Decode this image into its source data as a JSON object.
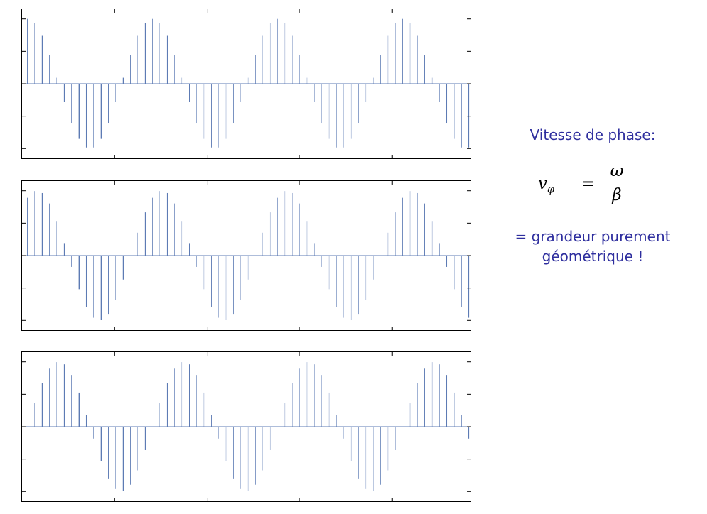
{
  "colors": {
    "stem": "#5d7bb4",
    "frame": "#000000",
    "note": "#2e2e9e"
  },
  "notes": {
    "title": "Vitesse de phase:",
    "formula": {
      "lhs": "v",
      "lhs_sub": "φ",
      "equals": "=",
      "numerator": "ω",
      "denominator": "β"
    },
    "line1": "= grandeur purement",
    "line2": "géométrique !"
  },
  "chart_data": [
    {
      "type": "stem",
      "title": "",
      "xlabel": "",
      "ylabel": "",
      "xlim": [
        0,
        61
      ],
      "ylim": [
        -1.15,
        1.15
      ],
      "cycles_shown": 3.6,
      "samples_per_cycle": 17,
      "phase_deg": 90,
      "n_samples": 61,
      "x_tick_count": 4,
      "y_tick_count": 5,
      "grid": false,
      "legend": "none"
    },
    {
      "type": "stem",
      "title": "",
      "xlabel": "",
      "ylabel": "",
      "xlim": [
        0,
        61
      ],
      "ylim": [
        -1.15,
        1.15
      ],
      "cycles_shown": 3.6,
      "samples_per_cycle": 17,
      "phase_deg": 63,
      "n_samples": 61,
      "x_tick_count": 4,
      "y_tick_count": 5,
      "grid": false,
      "legend": "none"
    },
    {
      "type": "stem",
      "title": "",
      "xlabel": "",
      "ylabel": "",
      "xlim": [
        0,
        61
      ],
      "ylim": [
        -1.15,
        1.15
      ],
      "cycles_shown": 3.6,
      "samples_per_cycle": 17,
      "phase_deg": 0,
      "n_samples": 61,
      "x_tick_count": 4,
      "y_tick_count": 5,
      "grid": false,
      "legend": "none"
    }
  ]
}
